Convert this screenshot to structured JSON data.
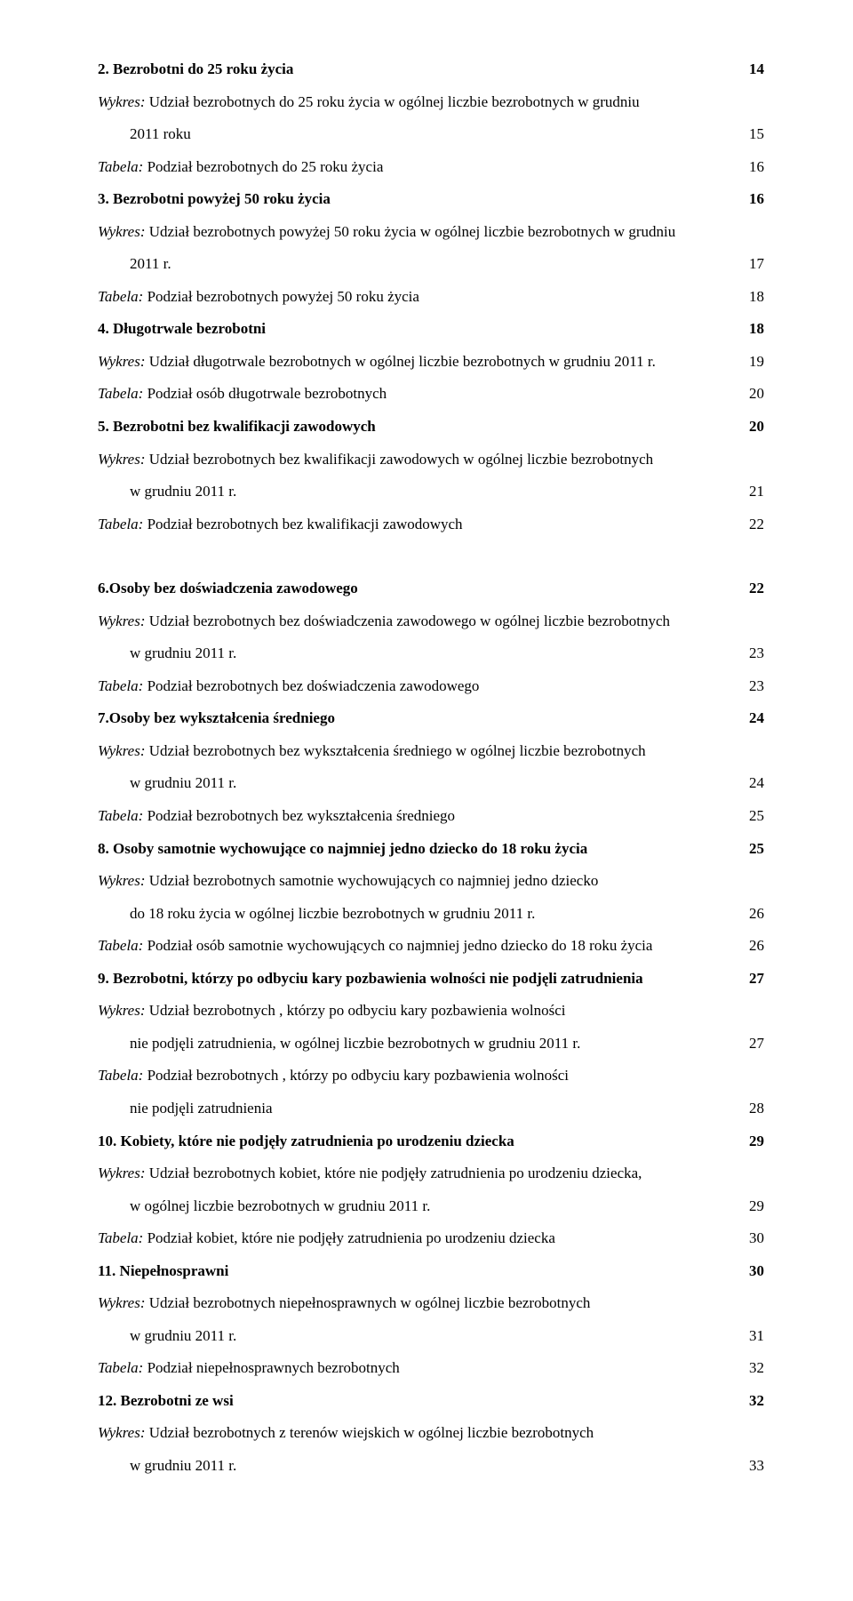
{
  "entries": [
    {
      "label": "2. Bezrobotni do 25 roku życia",
      "page": "14",
      "bold": true,
      "italic": false,
      "indent": 0
    },
    {
      "label": "Wykres: Udział bezrobotnych do 25 roku życia w ogólnej liczbie bezrobotnych w grudniu",
      "page": "",
      "bold": false,
      "italic": true,
      "indent": 0,
      "italic_prefix": "Wykres:"
    },
    {
      "label": "2011 roku",
      "page": "15",
      "bold": false,
      "italic": false,
      "indent": 1
    },
    {
      "label": "Tabela: Podział bezrobotnych do 25 roku życia",
      "page": "16",
      "bold": false,
      "italic": true,
      "indent": 0,
      "italic_prefix": "Tabela:"
    },
    {
      "label": "3. Bezrobotni powyżej 50 roku życia",
      "page": "16",
      "bold": true,
      "italic": false,
      "indent": 0
    },
    {
      "label": "Wykres: Udział bezrobotnych powyżej 50 roku życia w ogólnej liczbie bezrobotnych w grudniu",
      "page": "",
      "bold": false,
      "italic": true,
      "indent": 0,
      "italic_prefix": "Wykres:"
    },
    {
      "label": "2011 r.",
      "page": "17",
      "bold": false,
      "italic": false,
      "indent": 1
    },
    {
      "label": "Tabela: Podział bezrobotnych powyżej 50 roku życia",
      "page": "18",
      "bold": false,
      "italic": true,
      "indent": 0,
      "italic_prefix": "Tabela:"
    },
    {
      "label": "4. Długotrwale bezrobotni",
      "page": "18",
      "bold": true,
      "italic": false,
      "indent": 0
    },
    {
      "label": "Wykres: Udział długotrwale bezrobotnych w ogólnej liczbie bezrobotnych w grudniu 2011 r.",
      "page": "19",
      "bold": false,
      "italic": true,
      "indent": 0,
      "italic_prefix": "Wykres:"
    },
    {
      "label": "Tabela: Podział osób długotrwale bezrobotnych",
      "page": "20",
      "bold": false,
      "italic": true,
      "indent": 0,
      "italic_prefix": "Tabela:"
    },
    {
      "label": "5. Bezrobotni bez kwalifikacji zawodowych",
      "page": "20",
      "bold": true,
      "italic": false,
      "indent": 0
    },
    {
      "label": "Wykres: Udział bezrobotnych bez kwalifikacji zawodowych w ogólnej liczbie bezrobotnych",
      "page": "",
      "bold": false,
      "italic": true,
      "indent": 0,
      "italic_prefix": "Wykres:"
    },
    {
      "label": "w grudniu 2011 r.",
      "page": "21",
      "bold": false,
      "italic": false,
      "indent": 1
    },
    {
      "label": "Tabela: Podział bezrobotnych bez kwalifikacji zawodowych",
      "page": "22",
      "bold": false,
      "italic": true,
      "indent": 0,
      "italic_prefix": "Tabela:"
    },
    {
      "label": "",
      "page": "",
      "bold": false,
      "italic": false,
      "indent": 0,
      "spacer": true
    },
    {
      "label": "6.Osoby bez doświadczenia zawodowego",
      "page": "22",
      "bold": true,
      "italic": false,
      "indent": 0
    },
    {
      "label": "Wykres: Udział bezrobotnych bez doświadczenia zawodowego w ogólnej liczbie bezrobotnych",
      "page": "",
      "bold": false,
      "italic": true,
      "indent": 0,
      "italic_prefix": "Wykres:"
    },
    {
      "label": "w grudniu 2011 r.",
      "page": "23",
      "bold": false,
      "italic": false,
      "indent": 1
    },
    {
      "label": "Tabela: Podział bezrobotnych bez doświadczenia zawodowego",
      "page": "23",
      "bold": false,
      "italic": true,
      "indent": 0,
      "italic_prefix": "Tabela:"
    },
    {
      "label": "7.Osoby bez wykształcenia średniego",
      "page": "24",
      "bold": true,
      "italic": false,
      "indent": 0
    },
    {
      "label": "Wykres: Udział bezrobotnych bez wykształcenia średniego w ogólnej liczbie bezrobotnych",
      "page": "",
      "bold": false,
      "italic": true,
      "indent": 0,
      "italic_prefix": "Wykres:"
    },
    {
      "label": "w grudniu 2011 r.",
      "page": "24",
      "bold": false,
      "italic": false,
      "indent": 1
    },
    {
      "label": "Tabela: Podział bezrobotnych  bez wykształcenia średniego",
      "page": "25",
      "bold": false,
      "italic": true,
      "indent": 0,
      "italic_prefix": "Tabela:"
    },
    {
      "label": "8. Osoby samotnie wychowujące co najmniej jedno dziecko do 18 roku życia",
      "page": "25",
      "bold": true,
      "italic": false,
      "indent": 0
    },
    {
      "label": "Wykres: Udział bezrobotnych samotnie wychowujących co najmniej jedno dziecko",
      "page": "",
      "bold": false,
      "italic": true,
      "indent": 0,
      "italic_prefix": "Wykres:"
    },
    {
      "label": "do 18 roku życia w ogólnej liczbie bezrobotnych w grudniu 2011 r.",
      "page": "26",
      "bold": false,
      "italic": false,
      "indent": 1
    },
    {
      "label": "Tabela: Podział osób samotnie wychowujących co najmniej jedno dziecko do 18 roku życia",
      "page": "26",
      "bold": false,
      "italic": true,
      "indent": 0,
      "italic_prefix": "Tabela:"
    },
    {
      "label": "9. Bezrobotni, którzy po odbyciu kary pozbawienia wolności nie podjęli zatrudnienia",
      "page": "27",
      "bold": true,
      "italic": false,
      "indent": 0
    },
    {
      "label": "Wykres: Udział bezrobotnych , którzy po odbyciu kary pozbawienia wolności",
      "page": "",
      "bold": false,
      "italic": true,
      "indent": 0,
      "italic_prefix": "Wykres:"
    },
    {
      "label": "nie podjęli zatrudnienia, w ogólnej liczbie bezrobotnych w grudniu 2011 r.",
      "page": "27",
      "bold": false,
      "italic": false,
      "indent": 1
    },
    {
      "label": "Tabela: Podział bezrobotnych , którzy po odbyciu kary pozbawienia wolności",
      "page": "",
      "bold": false,
      "italic": true,
      "indent": 0,
      "italic_prefix": "Tabela:"
    },
    {
      "label": "nie podjęli zatrudnienia",
      "page": "28",
      "bold": false,
      "italic": false,
      "indent": 1
    },
    {
      "label": "10. Kobiety, które nie podjęły zatrudnienia po urodzeniu dziecka",
      "page": "29",
      "bold": true,
      "italic": false,
      "indent": 0
    },
    {
      "label": "Wykres: Udział bezrobotnych kobiet, które nie podjęły zatrudnienia po urodzeniu dziecka,",
      "page": "",
      "bold": false,
      "italic": true,
      "indent": 0,
      "italic_prefix": "Wykres:"
    },
    {
      "label": "w ogólnej liczbie bezrobotnych w grudniu 2011 r.",
      "page": "29",
      "bold": false,
      "italic": false,
      "indent": 1
    },
    {
      "label": "Tabela: Podział kobiet, które nie podjęły zatrudnienia po urodzeniu dziecka",
      "page": "30",
      "bold": false,
      "italic": true,
      "indent": 0,
      "italic_prefix": "Tabela:"
    },
    {
      "label": "11. Niepełnosprawni",
      "page": "30",
      "bold": true,
      "italic": false,
      "indent": 0
    },
    {
      "label": "Wykres: Udział bezrobotnych niepełnosprawnych w ogólnej liczbie bezrobotnych",
      "page": "",
      "bold": false,
      "italic": true,
      "indent": 0,
      "italic_prefix": "Wykres:"
    },
    {
      "label": "w grudniu 2011 r.",
      "page": "31",
      "bold": false,
      "italic": false,
      "indent": 1
    },
    {
      "label": "Tabela: Podział niepełnosprawnych  bezrobotnych",
      "page": "32",
      "bold": false,
      "italic": true,
      "indent": 0,
      "italic_prefix": "Tabela:"
    },
    {
      "label": "12. Bezrobotni ze wsi",
      "page": "32",
      "bold": true,
      "italic": false,
      "indent": 0
    },
    {
      "label": "Wykres: Udział bezrobotnych z terenów wiejskich w ogólnej liczbie bezrobotnych",
      "page": "",
      "bold": false,
      "italic": true,
      "indent": 0,
      "italic_prefix": "Wykres:"
    },
    {
      "label": "w grudniu 2011 r.",
      "page": "33",
      "bold": false,
      "italic": false,
      "indent": 1
    }
  ]
}
